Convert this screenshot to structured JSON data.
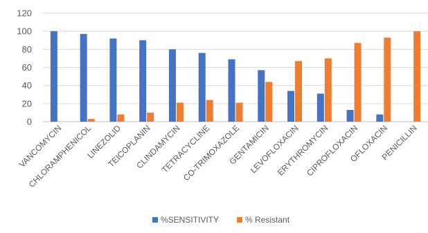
{
  "chart_data": {
    "type": "bar",
    "title": "",
    "xlabel": "",
    "ylabel": "",
    "ylim": [
      0,
      120
    ],
    "yticks": [
      0,
      20,
      40,
      60,
      80,
      100,
      120
    ],
    "grid": true,
    "legend_position": "bottom",
    "categories": [
      "VANCOMYCIN",
      "CHLORAMPHENICOL",
      "LINEZOLID",
      "TEICOPLANIN",
      "CLINDAMYCIN",
      "TETRACYCLINE",
      "CO-TRIMOXAZOLE",
      "GENTAMICIN",
      "LEVOFLOXACIN",
      "ERYTHROMYCIN",
      "CIPROFLOXACIN",
      "OFLOXACIN",
      "PENICILLIN"
    ],
    "series": [
      {
        "name": "%SENSITIVITY",
        "color": "#4472C4",
        "values": [
          100,
          97,
          92,
          90,
          80,
          76,
          69,
          57,
          34,
          31,
          13,
          8,
          0
        ]
      },
      {
        "name": "% Resistant",
        "color": "#ED7D31",
        "values": [
          0,
          3,
          8,
          10,
          21,
          24,
          21,
          44,
          67,
          70,
          87,
          93,
          100
        ]
      }
    ]
  }
}
